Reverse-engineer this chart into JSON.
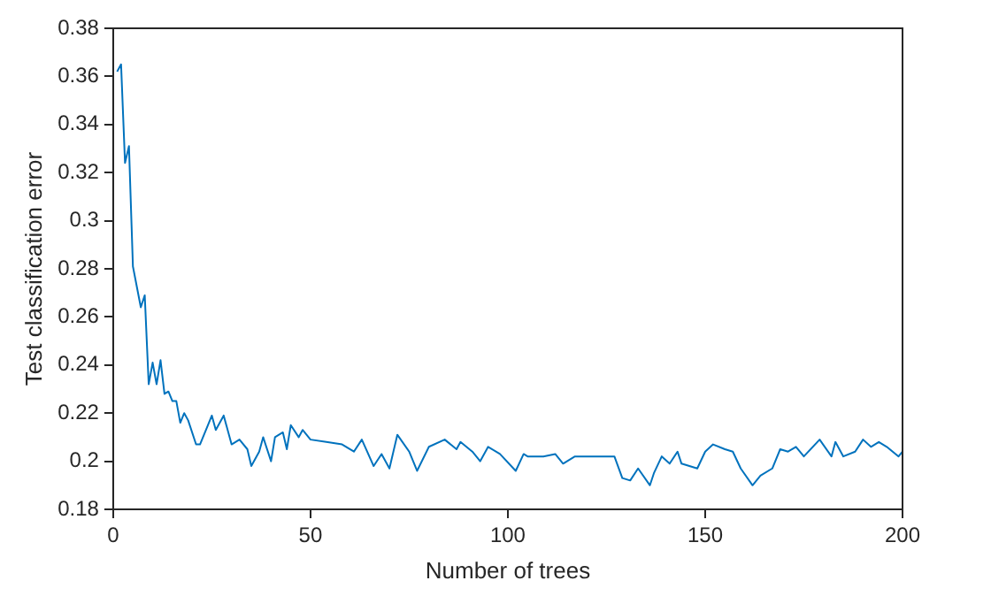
{
  "chart_data": {
    "type": "line",
    "xlabel": "Number of trees",
    "ylabel": "Test classification error",
    "x": [
      1,
      2,
      3,
      4,
      5,
      7,
      8,
      9,
      10,
      11,
      12,
      13,
      14,
      15,
      16,
      17,
      18,
      19,
      21,
      22,
      24,
      25,
      26,
      28,
      30,
      32,
      34,
      35,
      37,
      38,
      40,
      41,
      43,
      44,
      45,
      47,
      48,
      50,
      54,
      58,
      61,
      63,
      66,
      68,
      70,
      72,
      75,
      77,
      80,
      84,
      87,
      88,
      91,
      93,
      95,
      98,
      102,
      104,
      105,
      109,
      112,
      114,
      117,
      124,
      127,
      129,
      131,
      133,
      136,
      137,
      139,
      141,
      143,
      144,
      148,
      150,
      152,
      155,
      157,
      159,
      162,
      164,
      167,
      169,
      171,
      173,
      175,
      179,
      182,
      183,
      185,
      188,
      190,
      192,
      194,
      196,
      199,
      200
    ],
    "series": [
      {
        "color": "#0072bd",
        "values": [
          0.362,
          0.365,
          0.324,
          0.331,
          0.281,
          0.264,
          0.269,
          0.232,
          0.241,
          0.232,
          0.242,
          0.228,
          0.229,
          0.225,
          0.225,
          0.216,
          0.22,
          0.217,
          0.207,
          0.207,
          0.215,
          0.219,
          0.213,
          0.219,
          0.207,
          0.209,
          0.205,
          0.198,
          0.204,
          0.21,
          0.2,
          0.21,
          0.212,
          0.205,
          0.215,
          0.21,
          0.213,
          0.209,
          0.208,
          0.207,
          0.204,
          0.209,
          0.198,
          0.203,
          0.197,
          0.211,
          0.204,
          0.196,
          0.206,
          0.209,
          0.205,
          0.208,
          0.204,
          0.2,
          0.206,
          0.203,
          0.196,
          0.203,
          0.202,
          0.202,
          0.203,
          0.199,
          0.202,
          0.202,
          0.202,
          0.193,
          0.192,
          0.197,
          0.19,
          0.195,
          0.202,
          0.199,
          0.204,
          0.199,
          0.197,
          0.204,
          0.207,
          0.205,
          0.204,
          0.197,
          0.19,
          0.194,
          0.197,
          0.205,
          0.204,
          0.206,
          0.202,
          0.209,
          0.202,
          0.208,
          0.202,
          0.204,
          0.209,
          0.206,
          0.208,
          0.206,
          0.202,
          0.204
        ]
      }
    ],
    "xlim": [
      0,
      200
    ],
    "xticks": [
      0,
      50,
      100,
      150,
      200
    ],
    "ylim": [
      0.18,
      0.38
    ],
    "yticks": [
      0.18,
      0.2,
      0.22,
      0.24,
      0.26,
      0.28,
      0.3,
      0.32,
      0.34,
      0.36,
      0.38
    ],
    "grid": false,
    "legend": false,
    "marker": "none",
    "line_style": "solid"
  }
}
